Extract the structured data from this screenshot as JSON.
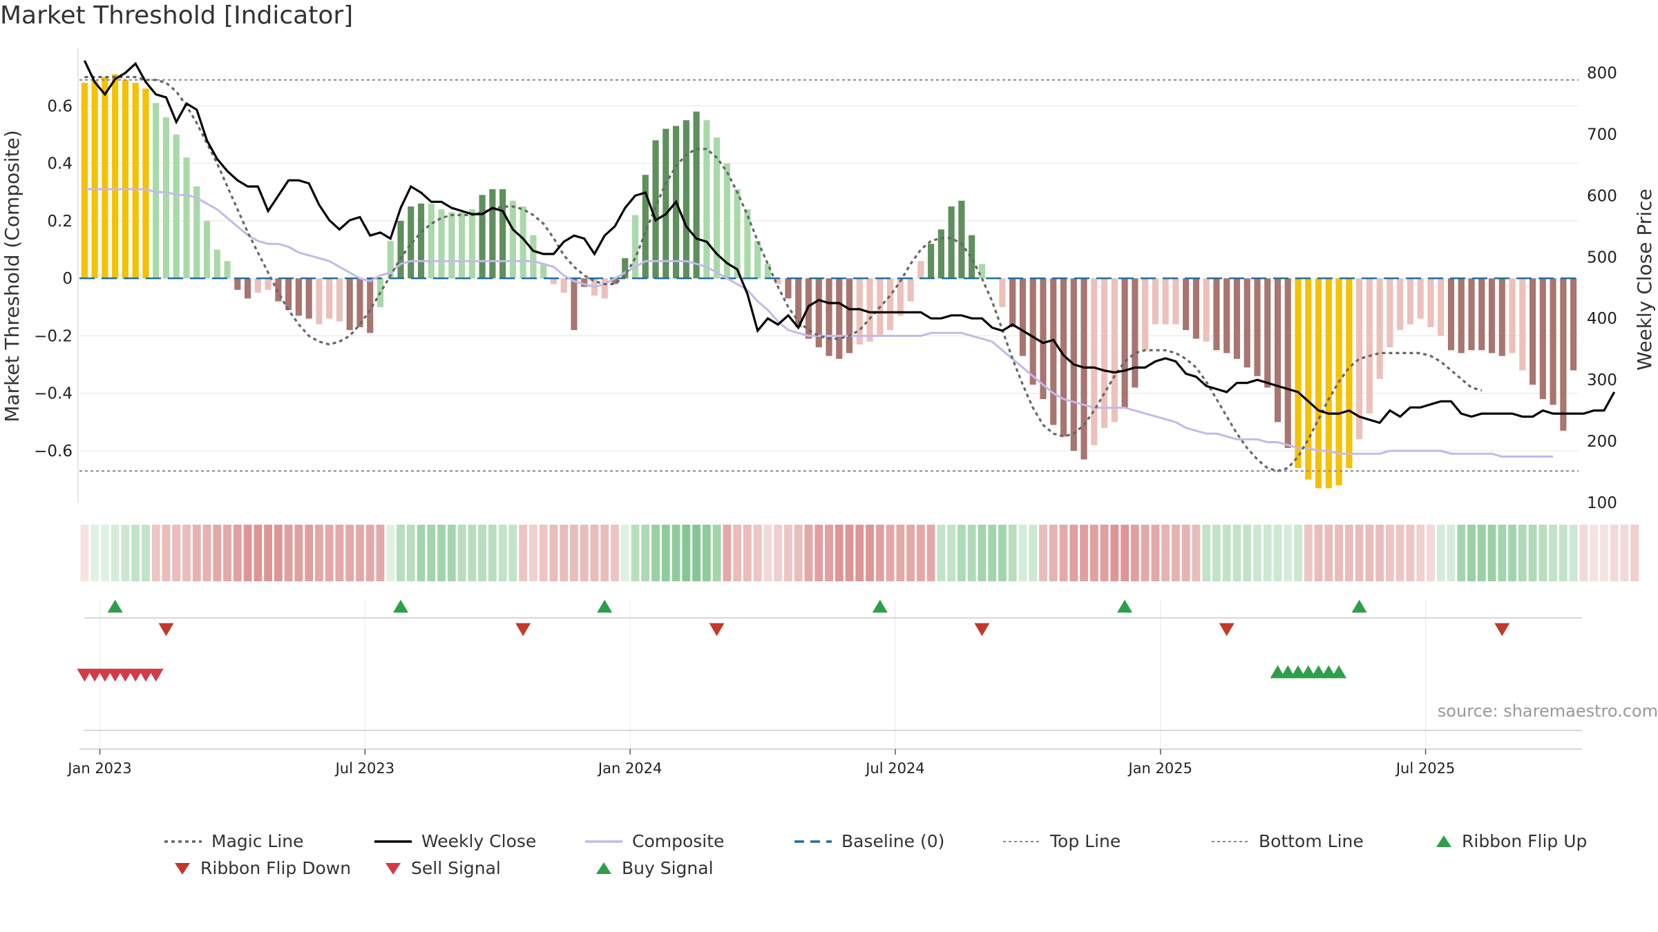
{
  "title": "Market Threshold [Indicator]",
  "source": "source: sharemaestro.com",
  "colors": {
    "gold": "#f5c100",
    "green_dark": "#5e8f5c",
    "green_light": "#a9d9a9",
    "red_dark": "#a8756f",
    "red_light": "#ecc1bb",
    "close": "#000000",
    "composite": "#c4b9ec",
    "magic": "#666666",
    "baseline": "#1f6fa1",
    "threshold": "#888888",
    "buy": "#2e9e4b",
    "sell": "#d33b47",
    "flip_up": "#2e9e4b",
    "flip_down": "#c0392b"
  },
  "legend": [
    {
      "key": "magic",
      "label": "Magic Line",
      "icon": "dotted-line"
    },
    {
      "key": "close",
      "label": "Weekly Close",
      "icon": "solid-line"
    },
    {
      "key": "composite",
      "label": "Composite",
      "icon": "solid-line"
    },
    {
      "key": "baseline",
      "label": "Baseline (0)",
      "icon": "dashed-line"
    },
    {
      "key": "top",
      "label": "Top Line",
      "icon": "dotted-line"
    },
    {
      "key": "bottom",
      "label": "Bottom Line",
      "icon": "dotted-line"
    },
    {
      "key": "flip_up",
      "label": "Ribbon Flip Up",
      "icon": "triangle-up"
    },
    {
      "key": "flip_down",
      "label": "Ribbon Flip Down",
      "icon": "triangle-down"
    },
    {
      "key": "sell",
      "label": "Sell Signal",
      "icon": "triangle-down"
    },
    {
      "key": "buy",
      "label": "Buy Signal",
      "icon": "triangle-up"
    }
  ],
  "chart_data": {
    "type": "bar",
    "ylabel_left": "Market Threshold (Composite)",
    "ylabel_right": "Weekly Close Price",
    "ylim_left": [
      -0.78,
      0.8
    ],
    "ylim_right": [
      100,
      840
    ],
    "yticks_left": [
      0.6,
      0.4,
      0.2,
      0,
      -0.2,
      -0.4,
      -0.6
    ],
    "ytick_labels_left": [
      "0.6",
      "0.4",
      "0.2",
      "0",
      "−0.2",
      "−0.4",
      "−0.6"
    ],
    "yticks_right": [
      800,
      700,
      600,
      500,
      400,
      300,
      200,
      100
    ],
    "ytick_labels_right": [
      "800",
      "700",
      "600",
      "500",
      "400",
      "300",
      "200",
      "100"
    ],
    "xtick_labels": [
      "Jan 2023",
      "Jul 2023",
      "Jan 2024",
      "Jul 2024",
      "Jan 2025",
      "Jul 2025"
    ],
    "xtick_weeks": [
      1.5,
      27.5,
      53.5,
      79.5,
      105.5,
      131.5
    ],
    "top_line": 0.69,
    "bottom_line": -0.67,
    "baseline": 0,
    "grid": true,
    "legend_placement": "bottom",
    "start_week": "Dec 2022",
    "composite_bars": [
      0.68,
      0.69,
      0.7,
      0.71,
      0.69,
      0.68,
      0.66,
      0.61,
      0.56,
      0.5,
      0.42,
      0.32,
      0.2,
      0.1,
      0.06,
      -0.04,
      -0.07,
      -0.05,
      -0.04,
      -0.08,
      -0.11,
      -0.13,
      -0.14,
      -0.16,
      -0.14,
      -0.15,
      -0.18,
      -0.17,
      -0.19,
      -0.1,
      0.13,
      0.2,
      0.25,
      0.26,
      0.26,
      0.24,
      0.23,
      0.23,
      0.24,
      0.29,
      0.31,
      0.31,
      0.27,
      0.25,
      0.15,
      0.05,
      -0.02,
      -0.05,
      -0.18,
      -0.03,
      -0.06,
      -0.07,
      -0.02,
      0.07,
      0.22,
      0.36,
      0.48,
      0.52,
      0.53,
      0.55,
      0.58,
      0.55,
      0.49,
      0.4,
      0.31,
      0.24,
      0.13,
      0.05,
      -0.02,
      -0.07,
      -0.17,
      -0.21,
      -0.24,
      -0.27,
      -0.28,
      -0.26,
      -0.23,
      -0.22,
      -0.2,
      -0.18,
      -0.13,
      -0.08,
      0.06,
      0.12,
      0.17,
      0.25,
      0.27,
      0.15,
      0.05,
      0,
      -0.1,
      -0.17,
      -0.27,
      -0.37,
      -0.42,
      -0.51,
      -0.55,
      -0.6,
      -0.63,
      -0.58,
      -0.52,
      -0.5,
      -0.45,
      -0.38,
      -0.25,
      -0.16,
      -0.16,
      -0.16,
      -0.18,
      -0.21,
      -0.22,
      -0.25,
      -0.26,
      -0.28,
      -0.31,
      -0.34,
      -0.38,
      -0.5,
      -0.59,
      -0.66,
      -0.7,
      -0.73,
      -0.73,
      -0.72,
      -0.66,
      -0.56,
      -0.47,
      -0.35,
      -0.24,
      -0.18,
      -0.16,
      -0.14,
      -0.17,
      -0.2,
      -0.25,
      -0.26,
      -0.25,
      -0.25,
      -0.26,
      -0.27,
      -0.26,
      -0.32,
      -0.37,
      -0.42,
      -0.44,
      -0.53,
      -0.32
    ],
    "bar_colors": [
      "gold",
      "gold",
      "gold",
      "gold",
      "gold",
      "gold",
      "gold",
      "green_light",
      "green_light",
      "green_light",
      "green_light",
      "green_light",
      "green_light",
      "green_light",
      "green_light",
      "red_dark",
      "red_dark",
      "red_light",
      "red_light",
      "red_dark",
      "red_dark",
      "red_dark",
      "red_dark",
      "red_light",
      "red_light",
      "red_light",
      "red_dark",
      "red_dark",
      "red_dark",
      "green_light",
      "green_light",
      "green_dark",
      "green_dark",
      "green_dark",
      "green_light",
      "green_light",
      "green_light",
      "green_light",
      "green_light",
      "green_dark",
      "green_dark",
      "green_dark",
      "green_light",
      "green_light",
      "green_light",
      "green_light",
      "red_light",
      "red_light",
      "red_dark",
      "red_dark",
      "red_light",
      "red_light",
      "red_dark",
      "green_dark",
      "green_light",
      "green_dark",
      "green_dark",
      "green_dark",
      "green_dark",
      "green_dark",
      "green_dark",
      "green_light",
      "green_light",
      "green_light",
      "green_light",
      "green_light",
      "green_light",
      "green_light",
      "red_light",
      "red_dark",
      "red_dark",
      "red_dark",
      "red_dark",
      "red_dark",
      "red_dark",
      "red_dark",
      "red_light",
      "red_light",
      "red_light",
      "red_light",
      "red_light",
      "red_light",
      "red_light",
      "green_dark",
      "green_dark",
      "green_dark",
      "green_dark",
      "green_dark",
      "green_light",
      "green_light",
      "red_light",
      "red_dark",
      "red_dark",
      "red_dark",
      "red_dark",
      "red_dark",
      "red_dark",
      "red_dark",
      "red_dark",
      "red_light",
      "red_light",
      "red_light",
      "red_dark",
      "red_dark",
      "red_light",
      "red_light",
      "red_light",
      "red_light",
      "red_dark",
      "red_dark",
      "red_light",
      "red_dark",
      "red_dark",
      "red_dark",
      "red_dark",
      "red_dark",
      "red_dark",
      "red_dark",
      "red_dark",
      "gold",
      "gold",
      "gold",
      "gold",
      "gold",
      "gold",
      "red_light",
      "red_light",
      "red_light",
      "red_light",
      "red_light",
      "red_light",
      "red_light",
      "red_light",
      "red_light",
      "red_dark",
      "red_dark",
      "red_dark",
      "red_dark",
      "red_dark",
      "red_dark",
      "red_light",
      "red_light",
      "red_dark",
      "red_dark",
      "red_dark",
      "red_dark",
      "red_dark",
      "red_light"
    ],
    "weekly_close": [
      820,
      785,
      765,
      790,
      800,
      815,
      785,
      765,
      760,
      720,
      750,
      740,
      690,
      660,
      640,
      625,
      615,
      615,
      575,
      600,
      625,
      625,
      620,
      585,
      560,
      545,
      560,
      565,
      535,
      540,
      530,
      580,
      615,
      605,
      590,
      590,
      580,
      575,
      570,
      570,
      580,
      575,
      545,
      530,
      510,
      505,
      505,
      525,
      535,
      530,
      505,
      535,
      550,
      580,
      600,
      605,
      560,
      570,
      590,
      550,
      530,
      525,
      505,
      490,
      480,
      440,
      380,
      400,
      390,
      405,
      385,
      420,
      430,
      425,
      425,
      415,
      415,
      410,
      410,
      410,
      410,
      410,
      410,
      400,
      400,
      405,
      405,
      400,
      400,
      385,
      380,
      390,
      380,
      370,
      360,
      365,
      340,
      325,
      320,
      320,
      315,
      312,
      315,
      320,
      320,
      330,
      335,
      330,
      310,
      305,
      290,
      285,
      280,
      295,
      295,
      300,
      295,
      290,
      285,
      280,
      265,
      250,
      245,
      245,
      250,
      240,
      235,
      230,
      250,
      240,
      255,
      255,
      260,
      265,
      265,
      245,
      240,
      245,
      245,
      245,
      245,
      240,
      240,
      250,
      245,
      245,
      245,
      245,
      250,
      250,
      280
    ],
    "composite_line": [
      0.31,
      0.31,
      0.31,
      0.31,
      0.31,
      0.31,
      0.31,
      0.3,
      0.3,
      0.29,
      0.29,
      0.28,
      0.26,
      0.24,
      0.21,
      0.18,
      0.15,
      0.13,
      0.12,
      0.12,
      0.11,
      0.09,
      0.08,
      0.07,
      0.06,
      0.04,
      0.02,
      0,
      -0.01,
      0.01,
      0.02,
      0.05,
      0.06,
      0.06,
      0.06,
      0.06,
      0.06,
      0.06,
      0.06,
      0.06,
      0.06,
      0.06,
      0.06,
      0.06,
      0.06,
      0.05,
      0.04,
      0.01,
      -0.01,
      -0.02,
      -0.03,
      -0.02,
      0,
      0.02,
      0.04,
      0.06,
      0.06,
      0.06,
      0.06,
      0.06,
      0.05,
      0.04,
      0.02,
      0,
      -0.02,
      -0.04,
      -0.08,
      -0.11,
      -0.15,
      -0.18,
      -0.19,
      -0.2,
      -0.2,
      -0.2,
      -0.2,
      -0.2,
      -0.2,
      -0.2,
      -0.2,
      -0.2,
      -0.2,
      -0.2,
      -0.2,
      -0.19,
      -0.19,
      -0.19,
      -0.19,
      -0.2,
      -0.21,
      -0.22,
      -0.25,
      -0.28,
      -0.31,
      -0.34,
      -0.37,
      -0.4,
      -0.42,
      -0.43,
      -0.44,
      -0.45,
      -0.45,
      -0.45,
      -0.45,
      -0.46,
      -0.47,
      -0.48,
      -0.49,
      -0.5,
      -0.52,
      -0.53,
      -0.54,
      -0.54,
      -0.55,
      -0.56,
      -0.56,
      -0.56,
      -0.57,
      -0.57,
      -0.58,
      -0.59,
      -0.59,
      -0.6,
      -0.6,
      -0.61,
      -0.61,
      -0.61,
      -0.61,
      -0.61,
      -0.6,
      -0.6,
      -0.6,
      -0.6,
      -0.6,
      -0.6,
      -0.61,
      -0.61,
      -0.61,
      -0.61,
      -0.61,
      -0.62,
      -0.62,
      -0.62,
      -0.62,
      -0.62,
      -0.62
    ],
    "magic_line": [
      0.7,
      0.7,
      0.7,
      0.7,
      0.7,
      0.7,
      0.69,
      0.69,
      0.68,
      0.65,
      0.6,
      0.54,
      0.47,
      0.4,
      0.32,
      0.24,
      0.16,
      0.09,
      0.02,
      -0.05,
      -0.11,
      -0.16,
      -0.2,
      -0.22,
      -0.23,
      -0.22,
      -0.2,
      -0.16,
      -0.11,
      -0.05,
      0.01,
      0.07,
      0.12,
      0.16,
      0.19,
      0.21,
      0.22,
      0.22,
      0.22,
      0.23,
      0.24,
      0.25,
      0.25,
      0.24,
      0.22,
      0.19,
      0.14,
      0.08,
      0.04,
      0.01,
      -0.01,
      -0.02,
      -0.02,
      0.01,
      0.07,
      0.16,
      0.25,
      0.33,
      0.39,
      0.43,
      0.45,
      0.45,
      0.42,
      0.37,
      0.3,
      0.22,
      0.13,
      0.05,
      -0.03,
      -0.1,
      -0.15,
      -0.18,
      -0.2,
      -0.21,
      -0.21,
      -0.2,
      -0.18,
      -0.14,
      -0.1,
      -0.06,
      -0.01,
      0.05,
      0.1,
      0.13,
      0.14,
      0.14,
      0.12,
      0.07,
      0,
      -0.08,
      -0.18,
      -0.28,
      -0.37,
      -0.45,
      -0.51,
      -0.54,
      -0.55,
      -0.54,
      -0.51,
      -0.46,
      -0.4,
      -0.34,
      -0.29,
      -0.26,
      -0.25,
      -0.25,
      -0.25,
      -0.26,
      -0.28,
      -0.31,
      -0.36,
      -0.42,
      -0.48,
      -0.54,
      -0.59,
      -0.63,
      -0.66,
      -0.67,
      -0.66,
      -0.62,
      -0.56,
      -0.49,
      -0.42,
      -0.36,
      -0.31,
      -0.28,
      -0.27,
      -0.26,
      -0.26,
      -0.26,
      -0.26,
      -0.26,
      -0.27,
      -0.29,
      -0.32,
      -0.35,
      -0.38,
      -0.39
    ],
    "ribbon_levels": [
      0.15,
      0.15,
      0.15,
      0.2,
      0.25,
      0.3,
      0.3,
      0.3,
      0.35,
      0.35,
      0.35,
      0.4,
      0.4,
      0.45,
      0.45,
      0.5,
      0.55,
      0.55,
      0.55,
      0.55,
      0.5,
      0.5,
      0.5,
      0.45,
      0.45,
      0.45,
      0.45,
      0.45,
      0.45,
      0.45,
      0.15,
      0.35,
      0.35,
      0.45,
      0.45,
      0.45,
      0.45,
      0.35,
      0.35,
      0.35,
      0.35,
      0.3,
      0.3,
      0.3,
      0.25,
      0.3,
      0.35,
      0.35,
      0.35,
      0.35,
      0.35,
      0.35,
      0.3,
      0.15,
      0.35,
      0.4,
      0.5,
      0.55,
      0.55,
      0.6,
      0.6,
      0.55,
      0.45,
      0.45,
      0.35,
      0.35,
      0.3,
      0.2,
      0.25,
      0.3,
      0.35,
      0.45,
      0.5,
      0.5,
      0.55,
      0.55,
      0.55,
      0.55,
      0.5,
      0.45,
      0.45,
      0.45,
      0.45,
      0.45,
      0.3,
      0.3,
      0.4,
      0.4,
      0.45,
      0.45,
      0.45,
      0.35,
      0.2,
      0.25,
      0.35,
      0.4,
      0.45,
      0.5,
      0.5,
      0.5,
      0.5,
      0.55,
      0.55,
      0.5,
      0.45,
      0.45,
      0.4,
      0.4,
      0.4,
      0.35,
      0.3,
      0.3,
      0.3,
      0.3,
      0.3,
      0.25,
      0.25,
      0.25,
      0.2,
      0.25,
      0.3,
      0.35,
      0.35,
      0.35,
      0.35,
      0.35,
      0.35,
      0.35,
      0.3,
      0.3,
      0.3,
      0.25,
      0.2,
      0.2,
      0.2,
      0.45,
      0.5,
      0.5,
      0.5,
      0.45,
      0.45,
      0.4,
      0.4,
      0.35,
      0.3,
      0.3,
      0.25,
      0.2,
      0.15,
      0.15,
      0.2,
      0.2,
      0.25
    ],
    "ribbon_side": [
      "r",
      "g",
      "g",
      "g",
      "g",
      "g",
      "g",
      "r",
      "r",
      "r",
      "r",
      "r",
      "r",
      "r",
      "r",
      "r",
      "r",
      "r",
      "r",
      "r",
      "r",
      "r",
      "r",
      "r",
      "r",
      "r",
      "r",
      "r",
      "r",
      "r",
      "g",
      "g",
      "g",
      "g",
      "g",
      "g",
      "g",
      "g",
      "g",
      "g",
      "g",
      "g",
      "g",
      "r",
      "r",
      "r",
      "r",
      "r",
      "r",
      "r",
      "r",
      "r",
      "r",
      "g",
      "g",
      "g",
      "g",
      "g",
      "g",
      "g",
      "g",
      "g",
      "g",
      "r",
      "r",
      "r",
      "r",
      "r",
      "r",
      "r",
      "r",
      "r",
      "r",
      "r",
      "r",
      "r",
      "r",
      "r",
      "r",
      "r",
      "r",
      "r",
      "r",
      "r",
      "g",
      "g",
      "g",
      "g",
      "g",
      "g",
      "g",
      "g",
      "g",
      "g",
      "r",
      "r",
      "r",
      "r",
      "r",
      "r",
      "r",
      "r",
      "r",
      "r",
      "r",
      "r",
      "r",
      "r",
      "r",
      "r",
      "g",
      "g",
      "g",
      "g",
      "g",
      "g",
      "g",
      "g",
      "g",
      "g",
      "r",
      "r",
      "r",
      "r",
      "r",
      "r",
      "r",
      "r",
      "r",
      "r",
      "r",
      "r",
      "r",
      "g",
      "g",
      "g",
      "g",
      "g",
      "g",
      "g",
      "g",
      "g",
      "g",
      "g",
      "g",
      "g",
      "g",
      "r",
      "r",
      "r",
      "r",
      "r",
      "r"
    ],
    "ribbon_flip_up_weeks": [
      3,
      31,
      51,
      78,
      102,
      125
    ],
    "ribbon_flip_down_weeks": [
      8,
      43,
      62,
      88,
      112,
      139
    ],
    "sell_signal_weeks": [
      0,
      1,
      2,
      3,
      4,
      5,
      6,
      7
    ],
    "buy_signal_weeks": [
      117,
      118,
      119,
      120,
      121,
      122,
      123
    ]
  }
}
